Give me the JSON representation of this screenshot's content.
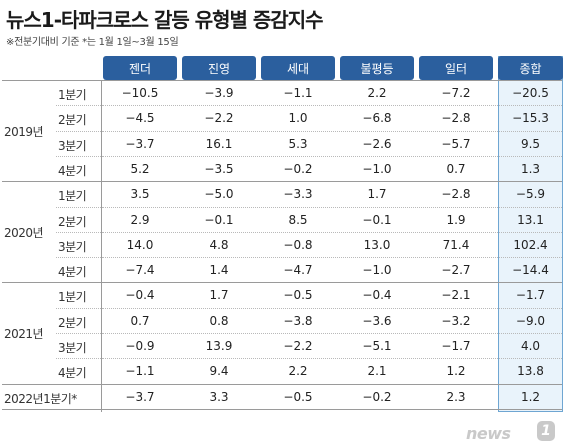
{
  "title": "뉴스1-타파크로스 갈등 유형별 증감지수",
  "note": "※전분기대비 기준 *는 1월 1일~3월 15일",
  "columns": [
    "젠더",
    "진영",
    "세대",
    "불평등",
    "일터",
    "종합"
  ],
  "years": [
    "2019년",
    "2020년",
    "2021년"
  ],
  "quarter_labels": [
    "1분기",
    "2분기",
    "3분기",
    "4분기"
  ],
  "last_row_label": "2022년1분기*",
  "rows": [
    [
      "-10.5",
      "-3.9",
      "-1.1",
      "2.2",
      "-7.2",
      "-20.5"
    ],
    [
      "-4.5",
      "-2.2",
      "1.0",
      "-6.8",
      "-2.8",
      "-15.3"
    ],
    [
      "-3.7",
      "16.1",
      "5.3",
      "-2.6",
      "-5.7",
      "9.5"
    ],
    [
      "5.2",
      "-3.5",
      "-0.2",
      "-1.0",
      "0.7",
      "1.3"
    ],
    [
      "3.5",
      "-5.0",
      "-3.3",
      "1.7",
      "-2.8",
      "-5.9"
    ],
    [
      "2.9",
      "-0.1",
      "8.5",
      "-0.1",
      "1.9",
      "13.1"
    ],
    [
      "14.0",
      "4.8",
      "-0.8",
      "13.0",
      "71.4",
      "102.4"
    ],
    [
      "-7.4",
      "1.4",
      "-4.7",
      "-1.0",
      "-2.7",
      "-14.4"
    ],
    [
      "-0.4",
      "1.7",
      "-0.5",
      "-0.4",
      "-2.1",
      "-1.7"
    ],
    [
      "0.7",
      "0.8",
      "-3.8",
      "-3.6",
      "-3.2",
      "-9.0"
    ],
    [
      "-0.9",
      "13.9",
      "-2.2",
      "-5.1",
      "-1.7",
      "4.0"
    ],
    [
      "-1.1",
      "9.4",
      "2.2",
      "2.1",
      "1.2",
      "13.8"
    ],
    [
      "-3.7",
      "3.3",
      "-0.5",
      "-0.2",
      "2.3",
      "1.2"
    ]
  ],
  "logo": {
    "text": "news",
    "mark": "1"
  },
  "colors": {
    "header": "#2b5f9e",
    "total_bg": "#e9f3fb",
    "total_border": "#6fa6d2"
  }
}
